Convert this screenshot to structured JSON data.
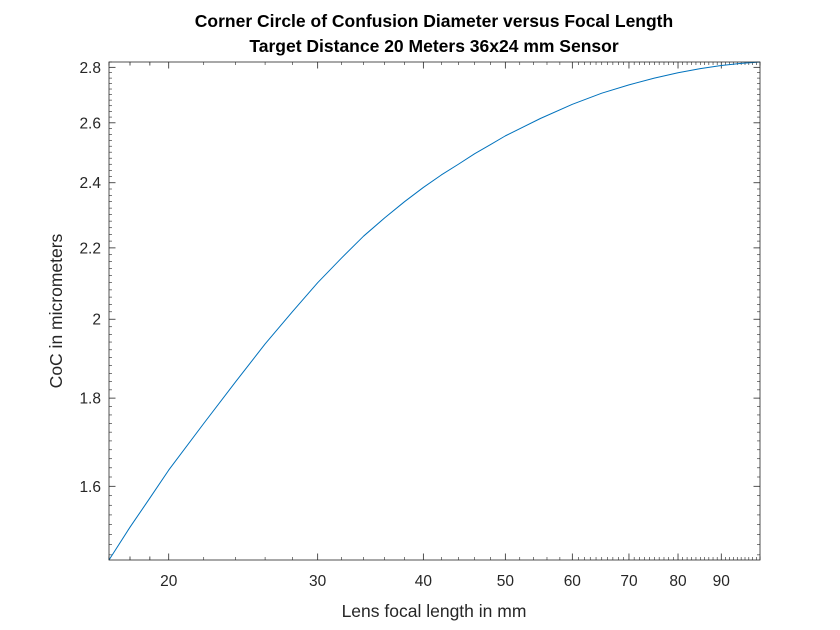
{
  "chart_data": {
    "type": "line",
    "title": "Corner Circle of Confusion Diameter versus Focal Length",
    "subtitle": "Target Distance 20 Meters 36x24 mm Sensor",
    "xlabel": "Lens focal length in mm",
    "ylabel": "CoC in micrometers",
    "xscale": "log",
    "yscale": "log",
    "xlim": [
      17,
      100
    ],
    "ylim": [
      1.45,
      2.82
    ],
    "xticks": [
      20,
      30,
      40,
      50,
      60,
      70,
      80,
      90
    ],
    "xtick_labels": [
      "20",
      "30",
      "40",
      "50",
      "60",
      "70",
      "80",
      "90"
    ],
    "yticks": [
      1.6,
      1.8,
      2,
      2.2,
      2.4,
      2.6,
      2.8
    ],
    "ytick_labels": [
      "1.6",
      "1.8",
      "2",
      "2.2",
      "2.4",
      "2.6",
      "2.8"
    ],
    "grid": false,
    "line_color": "#0072BD",
    "series": [
      {
        "x": [
          17,
          18,
          19,
          20,
          22,
          24,
          26,
          28,
          30,
          32,
          34,
          36,
          38,
          40,
          42,
          44,
          46,
          48,
          50,
          55,
          60,
          65,
          70,
          75,
          80,
          85,
          90,
          95,
          100
        ],
        "values": [
          1.45,
          1.515,
          1.575,
          1.635,
          1.74,
          1.84,
          1.935,
          2.02,
          2.1,
          2.17,
          2.235,
          2.29,
          2.34,
          2.385,
          2.425,
          2.46,
          2.495,
          2.525,
          2.555,
          2.615,
          2.665,
          2.705,
          2.735,
          2.76,
          2.78,
          2.795,
          2.807,
          2.815,
          2.82
        ]
      }
    ]
  }
}
